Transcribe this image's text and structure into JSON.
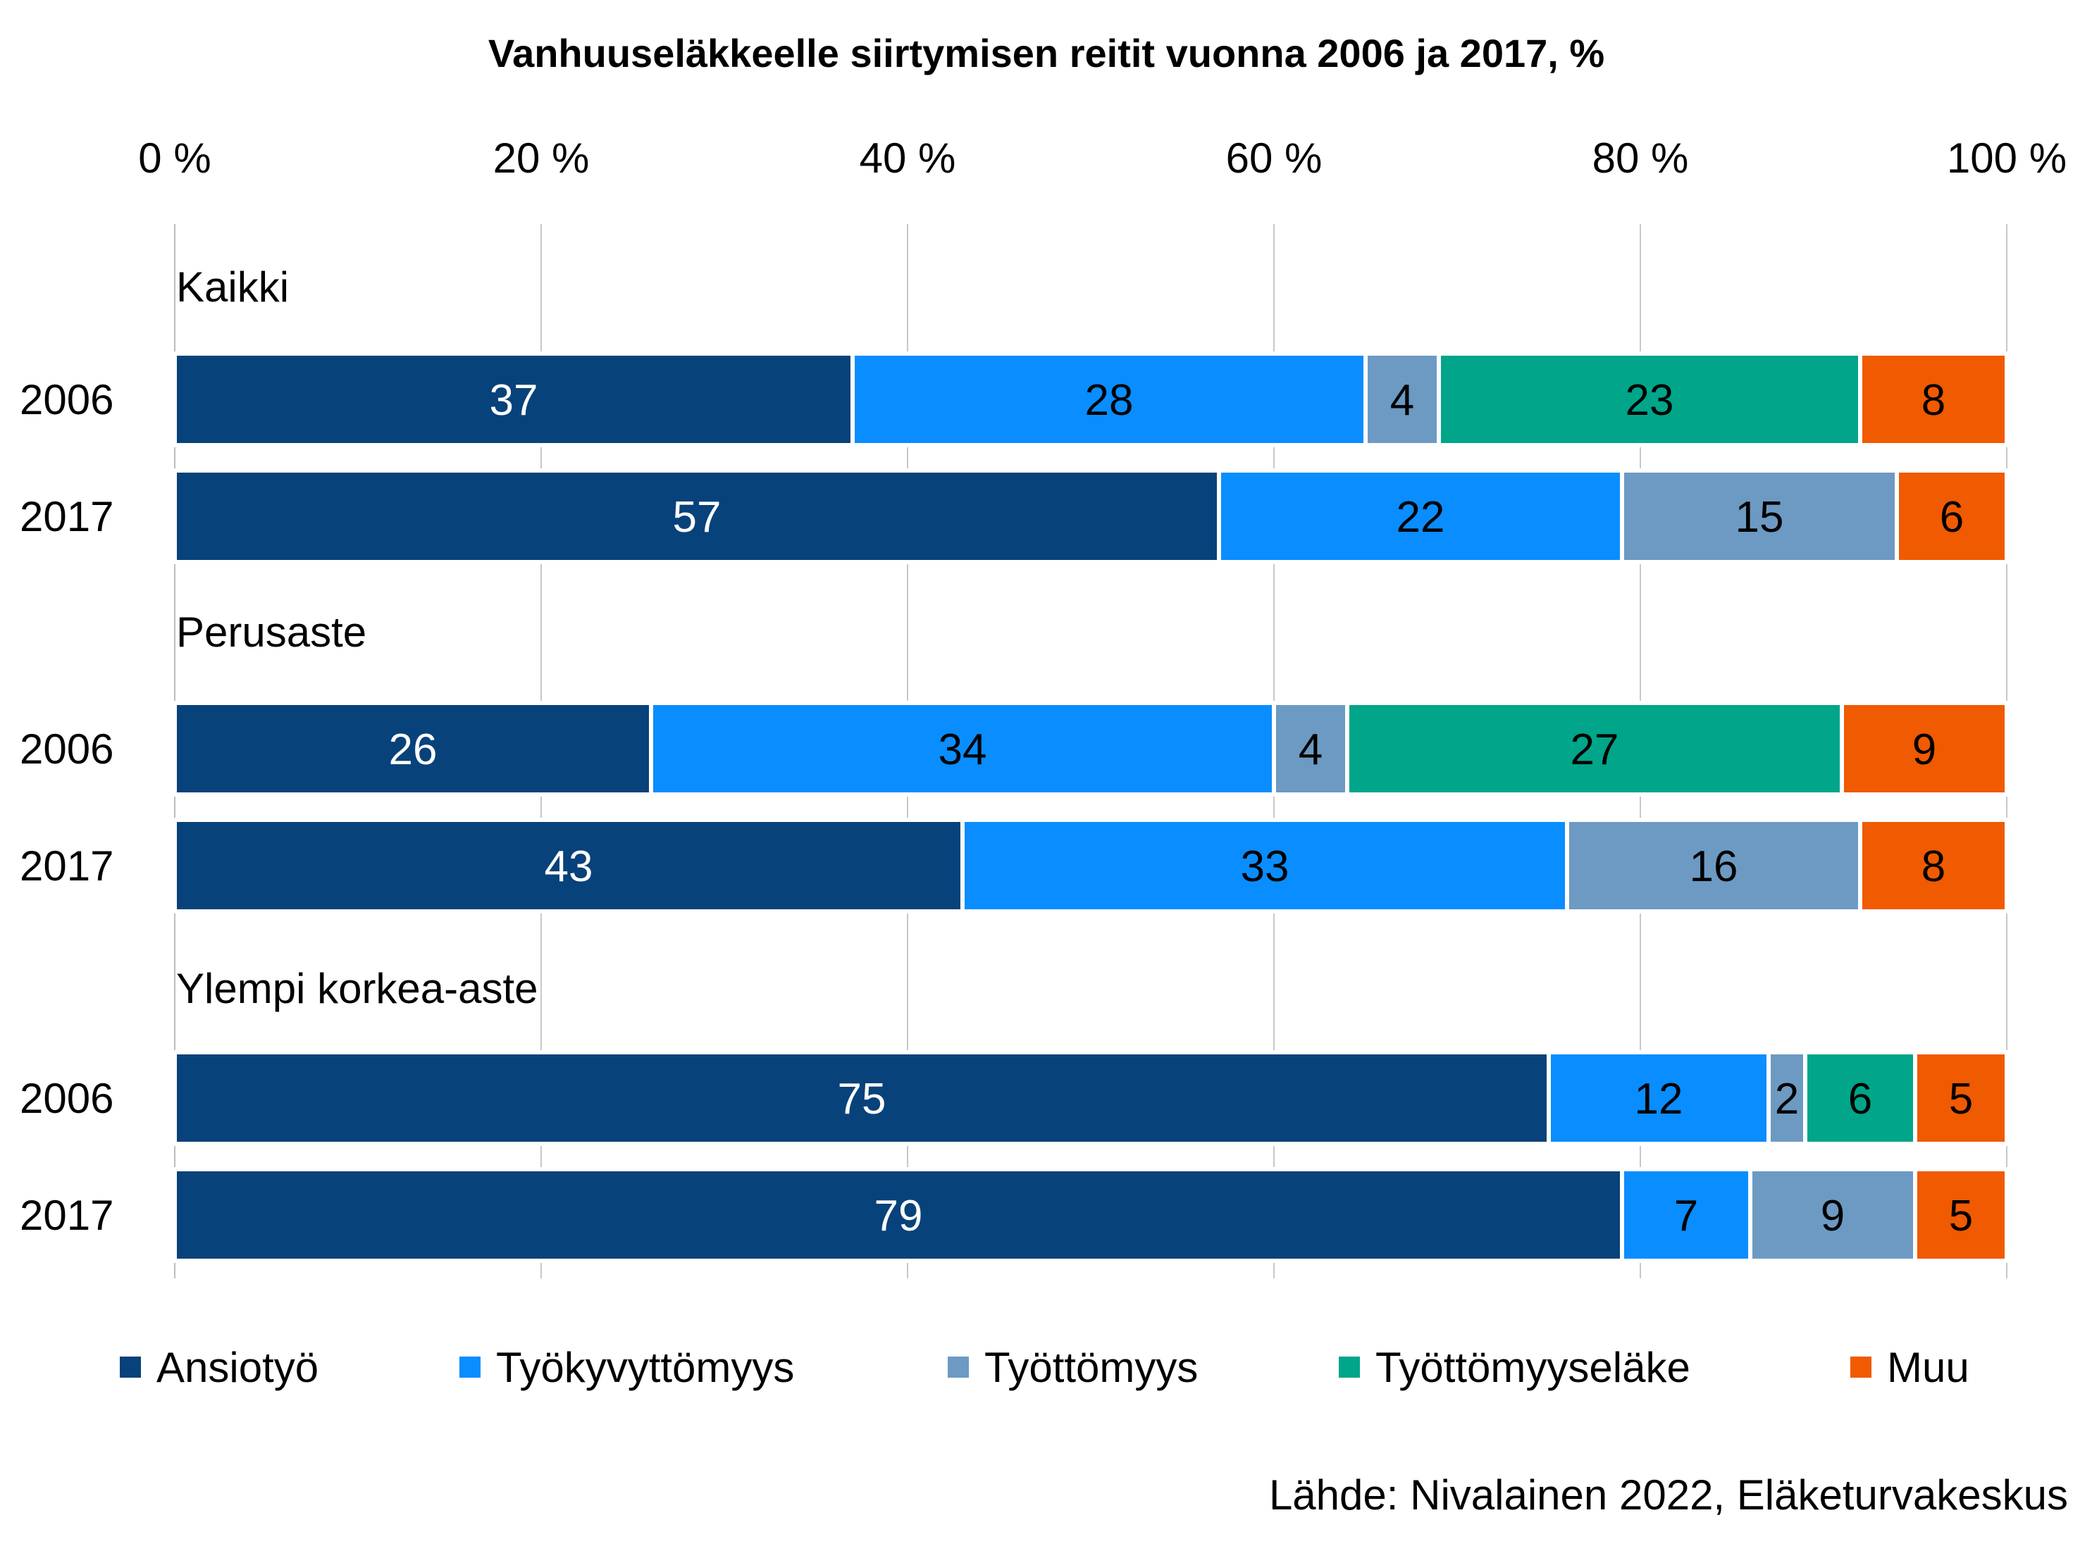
{
  "chart_data": {
    "type": "bar",
    "orientation": "horizontal",
    "stacked": "percent",
    "title": "Vanhuuseläkkeelle siirtymisen reitit vuonna 2006 ja 2017, %",
    "xlim": [
      0,
      100
    ],
    "x_ticks": [
      "0 %",
      "20 %",
      "40 %",
      "60 %",
      "80 %",
      "100 %"
    ],
    "grid": true,
    "legend_position": "bottom",
    "source": "Lähde: Nivalainen 2022, Eläketurvakeskus",
    "series": [
      {
        "name": "Ansiotyö",
        "color": "#08427B",
        "label_color": "#ffffff"
      },
      {
        "name": "Työkyvyttömyys",
        "color": "#0A8DFF",
        "label_color": "#000000"
      },
      {
        "name": "Työttömyys",
        "color": "#6C9AC3",
        "label_color": "#000000"
      },
      {
        "name": "Työttömyyseläke",
        "color": "#00A58A",
        "label_color": "#000000"
      },
      {
        "name": "Muu",
        "color": "#F05A00",
        "label_color": "#000000"
      }
    ],
    "groups": [
      {
        "label": "Kaikki",
        "bars": [
          {
            "category": "2006",
            "values": [
              37,
              28,
              4,
              23,
              8
            ]
          },
          {
            "category": "2017",
            "values": [
              57,
              22,
              15,
              0,
              6
            ]
          }
        ]
      },
      {
        "label": "Perusaste",
        "bars": [
          {
            "category": "2006",
            "values": [
              26,
              34,
              4,
              27,
              9
            ]
          },
          {
            "category": "2017",
            "values": [
              43,
              33,
              16,
              0,
              8
            ]
          }
        ]
      },
      {
        "label": "Ylempi korkea-aste",
        "bars": [
          {
            "category": "2006",
            "values": [
              75,
              12,
              2,
              6,
              5
            ]
          },
          {
            "category": "2017",
            "values": [
              79,
              7,
              9,
              0,
              5
            ]
          }
        ]
      }
    ]
  }
}
